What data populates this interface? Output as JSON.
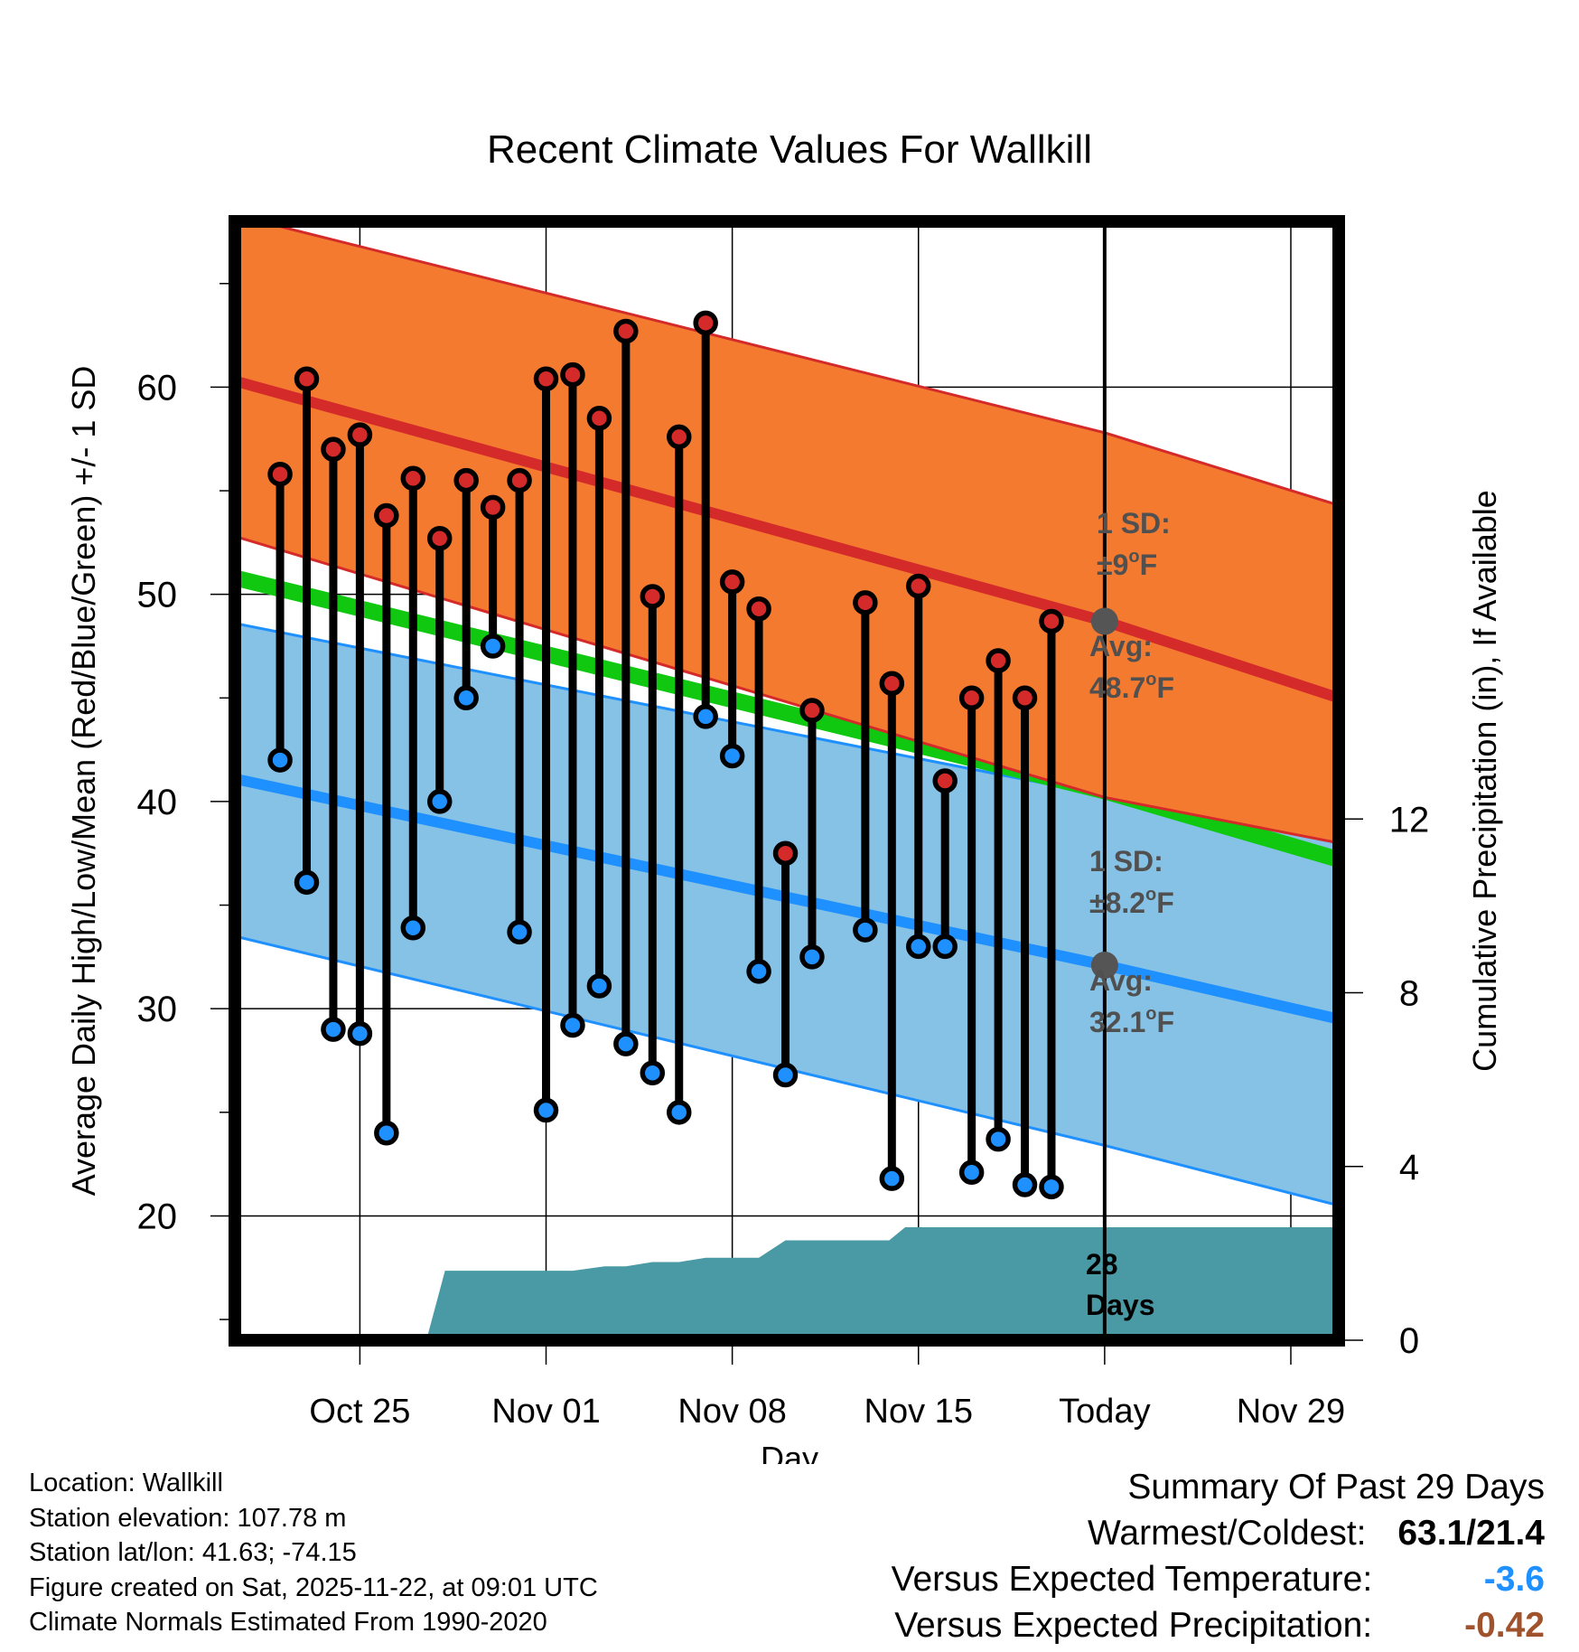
{
  "colors": {
    "high_band": "#f47a30",
    "high_line": "#d42a2a",
    "low_band": "#86c1e6",
    "low_line": "#1e90ff",
    "mean_line": "#10c810",
    "precip": "#4a9aa5",
    "dot_high": "#d42a2a",
    "dot_low": "#1e90ff",
    "annotation": "#505050",
    "temp_anomaly": "#1e90ff",
    "precip_anomaly": "#a0522d"
  },
  "chart_data": {
    "type": "line",
    "title": "Recent Climate Values For Wallkill",
    "xlabel": "Day",
    "ylabel": "Average Daily High/Low/Mean (Red/Blue/Green) +/- 1 SD",
    "y2label": "Cumulative Precipitation (in), If Available",
    "ylim": [
      14,
      68
    ],
    "y2lim": [
      0,
      25.76
    ],
    "xlim": [
      -0.7,
      40.8
    ],
    "yticks": [
      20,
      30,
      40,
      50,
      60
    ],
    "y2ticks": [
      0,
      4,
      8,
      12
    ],
    "xticks": [
      {
        "day": 4,
        "label": "Oct 25"
      },
      {
        "day": 11,
        "label": "Nov 01"
      },
      {
        "day": 18,
        "label": "Nov 08"
      },
      {
        "day": 25,
        "label": "Nov 15"
      },
      {
        "day": 32,
        "label": "Today"
      },
      {
        "day": 39,
        "label": "Nov 29"
      }
    ],
    "today_day": 32,
    "normals": {
      "days": [
        -0.7,
        32,
        40.8
      ],
      "high_upper": [
        68.3,
        57.8,
        54.3
      ],
      "high_avg": [
        60.3,
        48.7,
        45.0
      ],
      "high_lower": [
        52.8,
        40.2,
        38.0
      ],
      "mean": [
        50.8,
        40.5,
        37.2
      ],
      "low_upper": [
        48.6,
        40.3,
        38.0
      ],
      "low_avg": [
        41.1,
        32.1,
        29.5
      ],
      "low_lower": [
        33.5,
        23.4,
        20.5
      ]
    },
    "series": [
      {
        "name": "Daily High",
        "days": [
          1,
          2,
          3,
          4,
          5,
          6,
          7,
          8,
          9,
          10,
          11,
          12,
          13,
          14,
          15,
          16,
          17,
          18,
          19,
          20,
          21,
          22,
          23,
          24,
          25,
          26,
          27,
          28,
          29,
          30,
          31
        ],
        "values": [
          55.8,
          60.4,
          57.0,
          57.7,
          53.8,
          55.6,
          52.7,
          55.5,
          54.2,
          55.5,
          60.4,
          60.6,
          58.5,
          62.7,
          49.9,
          57.6,
          63.1,
          50.6,
          49.3,
          37.5,
          44.4,
          null,
          49.6,
          45.7,
          50.4,
          41.0,
          45.0,
          46.8,
          45.0,
          48.7,
          null
        ]
      },
      {
        "name": "Daily Low",
        "days": [
          1,
          2,
          3,
          4,
          5,
          6,
          7,
          8,
          9,
          10,
          11,
          12,
          13,
          14,
          15,
          16,
          17,
          18,
          19,
          20,
          21,
          22,
          23,
          24,
          25,
          26,
          27,
          28,
          29,
          30,
          31
        ],
        "values": [
          42.0,
          36.1,
          29.0,
          28.8,
          24.0,
          33.9,
          40.0,
          45.0,
          47.5,
          33.7,
          25.1,
          29.2,
          31.1,
          28.3,
          26.9,
          25.0,
          44.1,
          42.2,
          31.8,
          26.8,
          32.5,
          null,
          33.8,
          21.8,
          33.0,
          33.0,
          22.1,
          23.7,
          21.5,
          21.4,
          null
        ]
      },
      {
        "name": "Cumulative Precipitation",
        "days": [
          6.2,
          6.5,
          7.2,
          8.0,
          9.0,
          10.0,
          11.0,
          12.0,
          13.2,
          14.0,
          15.0,
          16.0,
          17.0,
          18.0,
          19.0,
          20.0,
          21.0,
          22.0,
          23.0,
          23.9,
          24.5,
          25.0,
          26.0,
          32.0,
          40.8
        ],
        "values": [
          0.0,
          0.0,
          1.6,
          1.6,
          1.6,
          1.6,
          1.6,
          1.6,
          1.7,
          1.7,
          1.8,
          1.8,
          1.9,
          1.9,
          1.9,
          2.3,
          2.3,
          2.3,
          2.3,
          2.3,
          2.6,
          2.6,
          2.6,
          2.6,
          2.6
        ]
      }
    ],
    "annotations": {
      "high_sd_1": "1 SD:",
      "high_sd_2": "±9",
      "high_sd_unit": "F",
      "high_avg_1": "Avg:",
      "high_avg_2": "48.7",
      "high_avg_unit": "F",
      "low_sd_1": "1 SD:",
      "low_sd_2": "±8.2",
      "low_sd_unit": "F",
      "low_avg_1": "Avg:",
      "low_avg_2": "32.1",
      "low_avg_unit": "F",
      "degree": "o",
      "days_1": "28",
      "days_2": "Days"
    }
  },
  "info": {
    "location": "Location: Wallkill",
    "elevation": "Station elevation: 107.78 m",
    "latlon": "Station lat/lon: 41.63; -74.15",
    "created": "Figure created on Sat, 2025-11-22, at 09:01 UTC",
    "normals": "Climate Normals Estimated From 1990-2020"
  },
  "summary": {
    "heading": "Summary Of Past 29 Days",
    "warm_cold_label": "Warmest/Coldest:",
    "warm_cold_value": "63.1/21.4",
    "temp_label": "Versus Expected Temperature:",
    "temp_value": "-3.6",
    "precip_label": "Versus Expected Precipitation:",
    "precip_value": "-0.42"
  }
}
